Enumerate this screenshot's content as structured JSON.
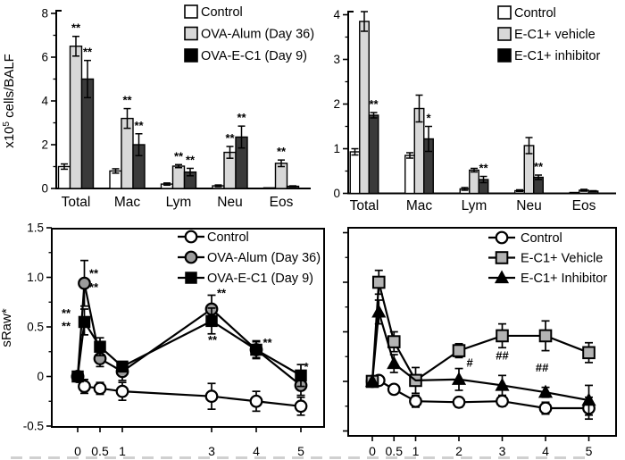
{
  "figure": {
    "kind": "scientific-four-panel-figure",
    "background": "#ffffff"
  },
  "chart_data": [
    {
      "id": "balf_ova",
      "type": "bar",
      "title": "",
      "ylabel": "x10^5 cells/BALF",
      "ylim": [
        0,
        8
      ],
      "ytick_values": [
        0,
        2,
        4,
        6,
        8
      ],
      "ytick_labels": [
        "0",
        "2",
        "4",
        "6",
        "8"
      ],
      "ytick_minor": [
        1,
        3,
        5,
        7
      ],
      "categories": [
        "Total",
        "Mac",
        "Lym",
        "Neu",
        "Eos"
      ],
      "legend_position": "top-right-inside",
      "series": [
        {
          "name": "Control",
          "fill": "#ffffff",
          "values": [
            1.0,
            0.8,
            0.2,
            0.12,
            0.03
          ],
          "errors": [
            0.12,
            0.1,
            0.05,
            0.04,
            0
          ],
          "sig": [
            "",
            "",
            "",
            "",
            ""
          ]
        },
        {
          "name": "OVA-Alum (Day 36)",
          "fill": "#d8d8d8",
          "values": [
            6.5,
            3.2,
            1.02,
            1.65,
            1.15
          ],
          "errors": [
            0.45,
            0.45,
            0.07,
            0.27,
            0.15
          ],
          "sig": [
            "**",
            "**",
            "**",
            "**",
            "**"
          ]
        },
        {
          "name": "OVA-E-C1 (Day 9)",
          "fill": "#3a3a3a",
          "legend_fill": "#000000",
          "values": [
            5.0,
            2.0,
            0.75,
            2.35,
            0.1
          ],
          "errors": [
            0.85,
            0.5,
            0.17,
            0.5,
            0.02
          ],
          "sig": [
            "**",
            "**",
            "**",
            "**",
            ""
          ]
        }
      ]
    },
    {
      "id": "balf_ec1",
      "type": "bar",
      "title": "",
      "ylabel": "",
      "ylim": [
        0,
        4
      ],
      "ytick_values": [
        0,
        1,
        2,
        3,
        4
      ],
      "ytick_labels": [
        "0",
        "1",
        "2",
        "3",
        "4"
      ],
      "ytick_minor": [
        0.5,
        1.5,
        2.5,
        3.5
      ],
      "categories": [
        "Total",
        "Mac",
        "Lym",
        "Neu",
        "Eos"
      ],
      "legend_position": "top-right-inside",
      "series": [
        {
          "name": "Control",
          "fill": "#ffffff",
          "values": [
            0.93,
            0.85,
            0.1,
            0.06,
            0.02
          ],
          "errors": [
            0.07,
            0.06,
            0.03,
            0.02,
            0
          ],
          "sig": [
            "",
            "",
            "",
            "",
            ""
          ]
        },
        {
          "name": "E-C1+ vehicle",
          "fill": "#d8d8d8",
          "values": [
            3.85,
            1.9,
            0.52,
            1.07,
            0.07
          ],
          "errors": [
            0.22,
            0.3,
            0.04,
            0.18,
            0.02
          ],
          "sig": [
            "",
            "",
            "",
            "",
            ""
          ]
        },
        {
          "name": "E-C1+ inhibitor",
          "fill": "#3a3a3a",
          "legend_fill": "#000000",
          "values": [
            1.75,
            1.22,
            0.31,
            0.36,
            0.05
          ],
          "errors": [
            0.06,
            0.28,
            0.07,
            0.05,
            0.01
          ],
          "sig": [
            "**",
            "*",
            "**",
            "**",
            ""
          ]
        }
      ]
    },
    {
      "id": "sraw_ova",
      "type": "line",
      "title": "",
      "ylabel": "sRaw*",
      "ylim": [
        -0.5,
        1.5
      ],
      "ytick_values": [
        -0.5,
        0,
        0.5,
        1.0,
        1.5
      ],
      "ytick_labels": [
        "-0.5",
        "0",
        "0.5",
        "1.0",
        "1.5"
      ],
      "ytick_minor": [
        -0.25,
        0.25,
        0.75,
        1.25
      ],
      "xtick_values": [
        0,
        0.5,
        1,
        3,
        4,
        5
      ],
      "xtick_labels": [
        "0",
        "0.5",
        "1",
        "3",
        "4",
        "5"
      ],
      "legend_position": "top-right-inside",
      "series": [
        {
          "name": "Control",
          "marker": "circle-open",
          "x": [
            0,
            0.15,
            0.5,
            1,
            3,
            4,
            5
          ],
          "y": [
            0,
            -0.1,
            -0.12,
            -0.15,
            -0.2,
            -0.25,
            -0.3
          ],
          "err": [
            0,
            0.07,
            0.06,
            0.09,
            0.13,
            0.1,
            0.09
          ]
        },
        {
          "name": "OVA-Alum (Day 36)",
          "marker": "circle-gray",
          "x": [
            0,
            0.15,
            0.5,
            1,
            3,
            4,
            5
          ],
          "y": [
            0,
            0.94,
            0.18,
            0.05,
            0.68,
            0.27,
            -0.09
          ],
          "err": [
            0,
            0.23,
            0.08,
            0.09,
            0.14,
            0.09,
            0.1
          ]
        },
        {
          "name": "OVA-E-C1 (Day 9)",
          "marker": "square-black",
          "x": [
            0,
            0.15,
            0.5,
            1,
            3,
            4,
            5
          ],
          "y": [
            0,
            0.55,
            0.3,
            0.1,
            0.56,
            0.27,
            0.01
          ],
          "err": [
            0,
            0.13,
            0.09,
            0.05,
            0.13,
            0.08,
            0.11
          ]
        }
      ],
      "annotations": [
        {
          "x": -0.26,
          "y": 0.6,
          "text": "**"
        },
        {
          "x": -0.26,
          "y": 0.47,
          "text": "**"
        },
        {
          "x": 0.36,
          "y": 1.0,
          "text": "**"
        },
        {
          "x": 0.36,
          "y": 0.86,
          "text": "**"
        },
        {
          "x": 3.22,
          "y": 0.8,
          "text": "**"
        },
        {
          "x": 3.02,
          "y": 0.33,
          "text": "**"
        },
        {
          "x": 4.25,
          "y": 0.3,
          "text": "**"
        },
        {
          "x": 5.12,
          "y": 0.06,
          "text": "*"
        }
      ]
    },
    {
      "id": "sraw_ec1",
      "type": "line",
      "title": "",
      "ylabel": "",
      "ylim": [
        -0.55,
        1.55
      ],
      "ytick_values": [
        -0.5,
        0,
        0.5,
        1.0,
        1.5
      ],
      "ytick_labels": [],
      "ytick_minor": [
        -0.25,
        0.25,
        0.75,
        1.25
      ],
      "xtick_values": [
        0,
        0.5,
        1,
        2,
        3,
        4,
        5
      ],
      "xtick_labels": [
        "0",
        "0.5",
        "1",
        "2",
        "3",
        "4",
        "5"
      ],
      "legend_position": "top-right-inside",
      "series": [
        {
          "name": "Control",
          "marker": "circle-open",
          "x": [
            0,
            0.15,
            0.5,
            1,
            2,
            3,
            4,
            5
          ],
          "y": [
            0,
            0.01,
            -0.08,
            -0.2,
            -0.21,
            -0.2,
            -0.27,
            -0.27
          ],
          "err": [
            0,
            0.04,
            0.04,
            0.06,
            0.05,
            0.05,
            0.06,
            0.11
          ]
        },
        {
          "name": "E-C1+ Vehicle",
          "marker": "square-gray",
          "x": [
            0,
            0.15,
            0.5,
            1,
            2,
            3,
            4,
            5
          ],
          "y": [
            0,
            1.0,
            0.4,
            0.01,
            0.31,
            0.46,
            0.46,
            0.29
          ],
          "err": [
            0,
            0.12,
            0.1,
            0.13,
            0.07,
            0.12,
            0.15,
            0.1
          ]
        },
        {
          "name": "E-C1+ Inhibitor",
          "marker": "triangle-black",
          "no_marker": [
            3
          ],
          "x": [
            0,
            0.15,
            0.5,
            1,
            2,
            3,
            4,
            5
          ],
          "y": [
            0,
            0.7,
            0.18,
            0.01,
            0.02,
            -0.04,
            -0.11,
            -0.19
          ],
          "err": [
            0,
            0.12,
            0.09,
            0,
            0.11,
            0.1,
            0.05,
            0.15
          ]
        }
      ],
      "annotations": [
        {
          "x": 2.25,
          "y": 0.15,
          "text": "#"
        },
        {
          "x": 3.0,
          "y": 0.22,
          "text": "##"
        },
        {
          "x": 3.92,
          "y": 0.1,
          "text": "##"
        }
      ]
    }
  ]
}
